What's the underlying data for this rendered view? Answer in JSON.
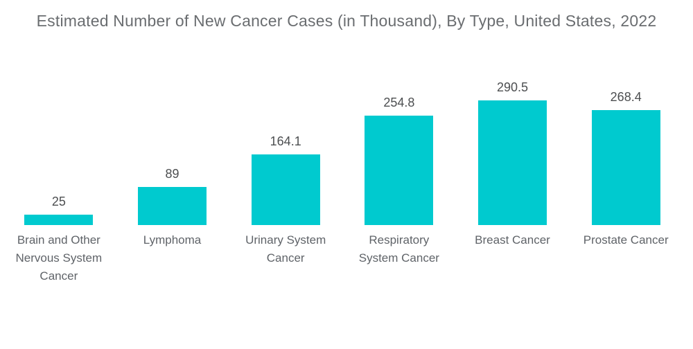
{
  "title": "Estimated Number of New Cancer Cases (in Thousand), By Type, United States, 2022",
  "chart_data": {
    "type": "bar",
    "title": "Estimated Number of New Cancer Cases (in Thousand), By Type, United States, 2022",
    "categories": [
      "Brain and Other Nervous System Cancer",
      "Lymphoma",
      "Urinary System Cancer",
      "Respiratory System Cancer",
      "Breast Cancer",
      "Prostate Cancer"
    ],
    "values": [
      25,
      89,
      164.1,
      254.8,
      290.5,
      268.4
    ],
    "value_labels": [
      "25",
      "89",
      "164.1",
      "254.8",
      "290.5",
      "268.4"
    ],
    "xlabel": "",
    "ylabel": "",
    "ylim": [
      0,
      300
    ],
    "grid": false,
    "legend": "none",
    "axes_visible": false,
    "bar_color": "#00CACF",
    "title_color": "#6A6D70",
    "value_label_color": "#4C4E50",
    "category_label_color": "#5F6368",
    "background_color": "#FFFFFF"
  }
}
